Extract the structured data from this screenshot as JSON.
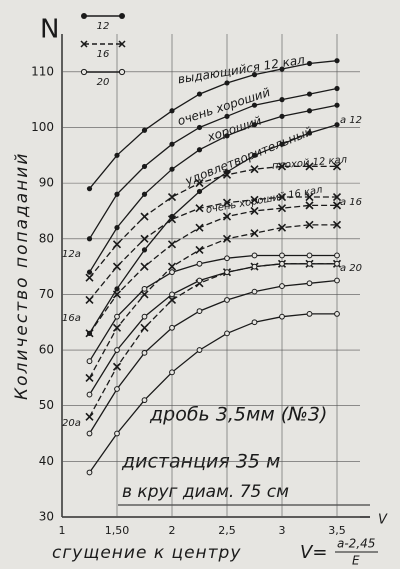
{
  "chart_data": {
    "type": "line",
    "y_label": "Количество попаданий",
    "y_symbol": "N",
    "x_label": "сгущение к центру",
    "x_formula_lhs": "V=",
    "x_formula_num": "a-2,45",
    "x_formula_den": "E",
    "x_symbol": "V",
    "x": [
      1.25,
      1.5,
      1.75,
      2,
      2.25,
      2.5,
      2.75,
      3,
      3.25,
      3.5
    ],
    "xlim": [
      1,
      3.8
    ],
    "ylim": [
      30,
      115
    ],
    "xticks": [
      {
        "value": 1,
        "label": "1"
      },
      {
        "value": 1.5,
        "label": "1,50"
      },
      {
        "value": 2,
        "label": "2"
      },
      {
        "value": 2.5,
        "label": "2,5"
      },
      {
        "value": 3,
        "label": "3"
      },
      {
        "value": 3.5,
        "label": "3,5"
      }
    ],
    "yticks": [
      30,
      40,
      50,
      60,
      70,
      80,
      90,
      100,
      110
    ],
    "grid": true,
    "groups": [
      {
        "name": "12",
        "color": "#1a1a1a",
        "marker": "dot",
        "dash": false,
        "series": [
          {
            "values": [
              89,
              95,
              99.5,
              103,
              106,
              108,
              109.5,
              110.5,
              111.5,
              112
            ]
          },
          {
            "values": [
              80,
              88,
              93,
              97,
              100,
              102,
              104,
              105,
              106,
              107
            ]
          },
          {
            "values": [
              74,
              82,
              88,
              92.5,
              96,
              98.5,
              100.5,
              102,
              103,
              104
            ]
          },
          {
            "values": [
              63,
              71,
              78,
              84,
              88.5,
              92,
              95,
              97,
              99,
              100.5
            ]
          }
        ]
      },
      {
        "name": "16",
        "color": "#1a1a1a",
        "marker": "cross",
        "dash": true,
        "series": [
          {
            "values": [
              73,
              79,
              84,
              87.5,
              90,
              91.5,
              92.5,
              93,
              93,
              93
            ]
          },
          {
            "values": [
              69,
              75,
              80,
              83.5,
              85.5,
              86.5,
              87,
              87.5,
              87.5,
              87.5
            ]
          },
          {
            "values": [
              63,
              70,
              75,
              79,
              82,
              84,
              85,
              85.5,
              86,
              86
            ]
          },
          {
            "values": [
              55,
              64,
              70,
              75,
              78,
              80,
              81,
              82,
              82.5,
              82.5
            ]
          },
          {
            "values": [
              48,
              57,
              64,
              69,
              72,
              74,
              75,
              75.5,
              75.5,
              75.5
            ]
          }
        ]
      },
      {
        "name": "20",
        "color": "#1a1a1a",
        "marker": "circle",
        "dash": false,
        "series": [
          {
            "values": [
              58,
              66,
              71,
              74,
              75.5,
              76.5,
              77,
              77,
              77,
              77
            ]
          },
          {
            "values": [
              52,
              60,
              66,
              70,
              72.5,
              74,
              75,
              75.5,
              75.5,
              75.5
            ]
          },
          {
            "values": [
              45,
              53,
              59.5,
              64,
              67,
              69,
              70.5,
              71.5,
              72,
              72.5
            ]
          },
          {
            "values": [
              38,
              45,
              51,
              56,
              60,
              63,
              65,
              66,
              66.5,
              66.5
            ]
          }
        ]
      }
    ],
    "annotations": [
      "выдающийся 12 кал",
      "очень хороший",
      "хороший",
      "удовлетворительный",
      "плохой 12 кал",
      "очень хороший 16 кал",
      "а 12",
      "а 16",
      "а 20",
      "12а",
      "16а",
      "20а",
      "дробь 3,5мм (№3)",
      "дистанция 35 м",
      "в круг диам. 75 см"
    ]
  }
}
